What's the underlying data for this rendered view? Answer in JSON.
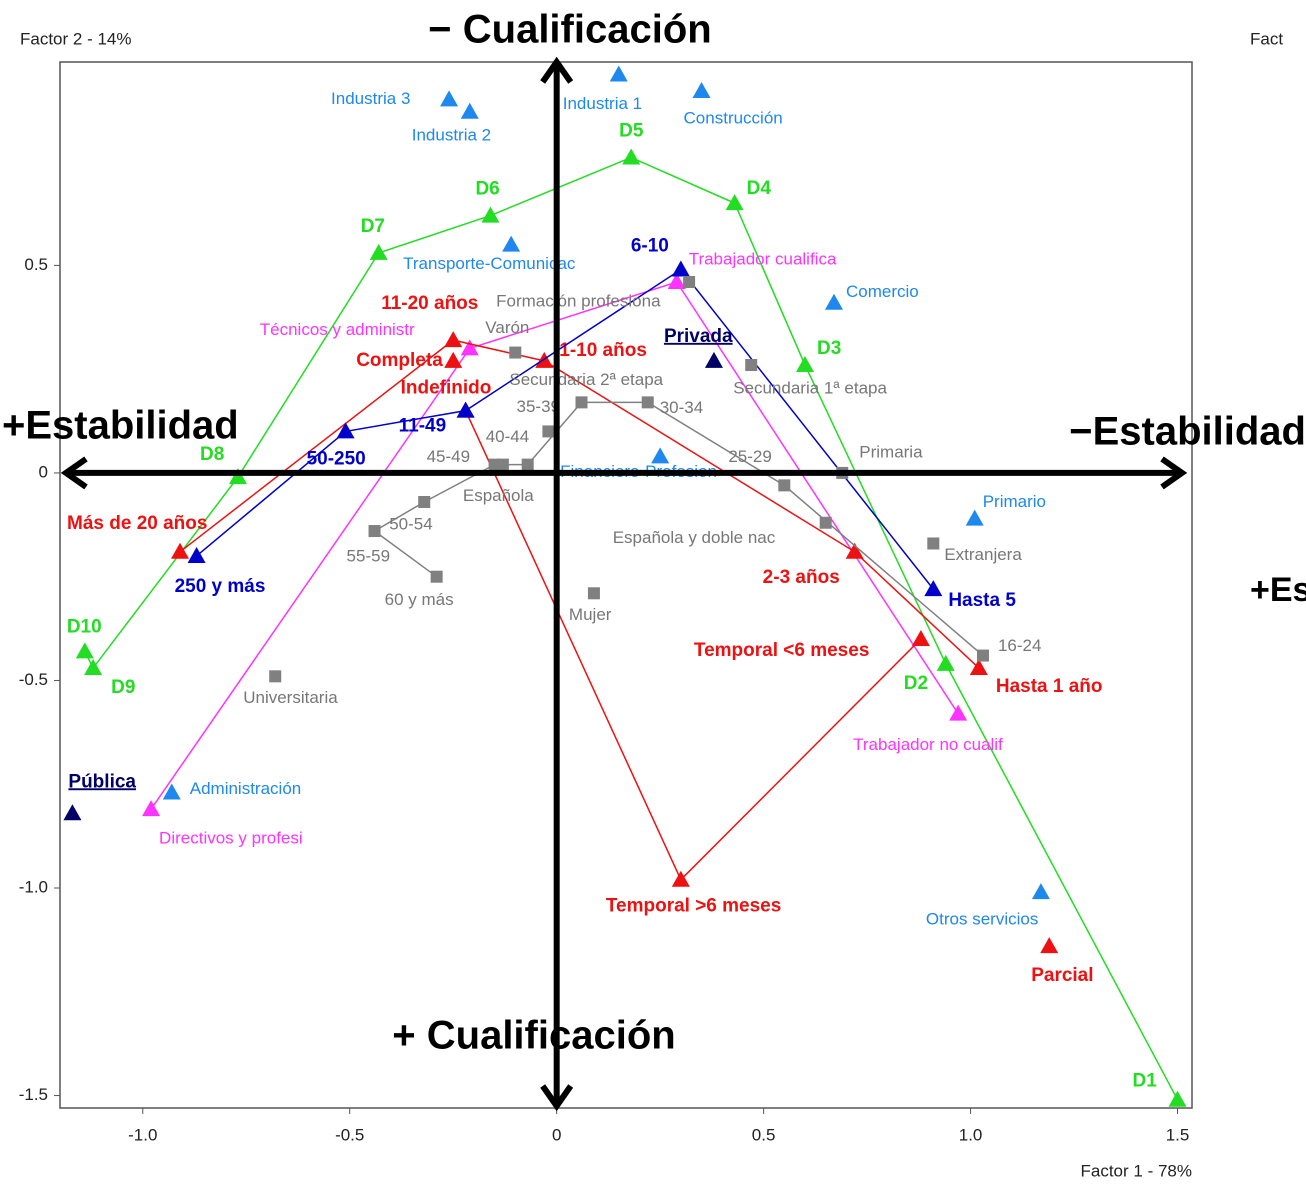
{
  "chart_data": {
    "type": "scatter",
    "xlabel": "Factor 1 - 78%",
    "ylabel": "Factor 2 - 14%",
    "annotations": [
      "− Cualificación",
      "+ Cualificación",
      "+Estabilidad",
      "−Estabilidad",
      "Fact",
      "+Es"
    ],
    "xlim": [
      -1.2,
      1.535
    ],
    "ylim": [
      -1.53,
      0.99
    ],
    "xticks": [
      {
        "value": -1,
        "label": "-1.0"
      },
      -0.5,
      0,
      0.5,
      {
        "value": 1,
        "label": "1.0"
      },
      1.5
    ],
    "yticks": [
      0.5,
      0,
      -0.5,
      {
        "value": -1,
        "label": "-1.0"
      },
      -1.5
    ],
    "series": [
      {
        "color": "#22dd22",
        "marker": "triangle",
        "bold": true,
        "line": true,
        "labels": [
          "D1",
          "D2",
          "D3",
          "D4",
          "D5",
          "D6",
          "D7",
          "D8",
          "D9",
          "D10"
        ],
        "x": [
          1.5,
          0.94,
          0.6,
          0.43,
          0.18,
          -0.16,
          -0.43,
          -0.77,
          -1.12,
          -1.14
        ],
        "values": [
          -1.51,
          -0.46,
          0.26,
          0.65,
          0.76,
          0.62,
          0.53,
          -0.01,
          -0.47,
          -0.43
        ]
      },
      {
        "color": "#1e88ee",
        "marker": "triangle",
        "bold": false,
        "line": false,
        "labels": [
          "Industria 3",
          "Industria 2",
          "Industria 1",
          "Construcción",
          "Transporte-Comunicac",
          "Comercio",
          "Financiero-Profesion",
          "Primario",
          "Otros servicios",
          "Administración"
        ],
        "x": [
          -0.26,
          -0.21,
          0.15,
          0.35,
          -0.11,
          0.67,
          0.25,
          1.01,
          1.17,
          -0.93
        ],
        "values": [
          0.9,
          0.87,
          0.96,
          0.92,
          0.55,
          0.41,
          0.04,
          -0.11,
          -1.01,
          -0.77
        ]
      },
      {
        "color": "#ff33ff",
        "marker": "triangle",
        "bold": false,
        "line": true,
        "labels": [
          "Directivos y profesi",
          "Técnicos y administr",
          "Trabajador cualifica",
          "Trabajador no cualif"
        ],
        "x": [
          -0.98,
          -0.21,
          0.29,
          0.97
        ],
        "values": [
          -0.81,
          0.3,
          0.46,
          -0.58
        ]
      },
      {
        "color": "#ee1111",
        "marker": "triangle",
        "bold": true,
        "line": true,
        "labels": [
          "Más de 20 años",
          "11-20 años",
          "1-10 años",
          "2-3 años",
          "Hasta 1 año"
        ],
        "x": [
          -0.91,
          -0.25,
          -0.03,
          0.72,
          1.02
        ],
        "values": [
          -0.19,
          0.32,
          0.27,
          -0.19,
          -0.47
        ]
      },
      {
        "color": "#ee1111",
        "marker": "triangle",
        "bold": true,
        "line": true,
        "labels": [
          "Indefinido",
          "Temporal >6 meses",
          "Temporal <6 meses"
        ],
        "x": [
          -0.22,
          0.3,
          0.88
        ],
        "values": [
          0.15,
          -0.98,
          -0.4
        ]
      },
      {
        "color": "#ee1111",
        "marker": "triangle",
        "bold": true,
        "line": false,
        "labels": [
          "Completa",
          "Parcial"
        ],
        "x": [
          -0.25,
          1.19
        ],
        "values": [
          0.27,
          -1.14
        ]
      },
      {
        "color": "#0000cc",
        "marker": "triangle",
        "bold": true,
        "line": true,
        "labels": [
          "250 y más",
          "50-250",
          "11-49",
          "6-10",
          "Hasta 5"
        ],
        "x": [
          -0.87,
          -0.51,
          -0.22,
          0.3,
          0.91
        ],
        "values": [
          -0.2,
          0.1,
          0.15,
          0.49,
          -0.28
        ]
      },
      {
        "color": "#000066",
        "marker": "triangle",
        "bold": true,
        "underline": true,
        "line": false,
        "labels": [
          "Pública",
          "Privada"
        ],
        "x": [
          -1.17,
          0.38
        ],
        "values": [
          -0.82,
          0.27
        ]
      },
      {
        "color": "#808080",
        "marker": "square",
        "bold": false,
        "line": true,
        "labels": [
          "16-24",
          "25-29",
          "30-34",
          "35-39",
          "40-44",
          "45-49",
          "50-54",
          "55-59",
          "60 y más"
        ],
        "x": [
          1.03,
          0.55,
          0.22,
          0.06,
          -0.07,
          -0.15,
          -0.32,
          -0.44,
          -0.29
        ],
        "values": [
          -0.44,
          -0.03,
          0.17,
          0.17,
          0.02,
          0.02,
          -0.07,
          -0.14,
          -0.25
        ]
      },
      {
        "color": "#808080",
        "marker": "square",
        "bold": false,
        "line": false,
        "labels": [
          "Varón",
          "Mujer",
          "Formación profesiona",
          "Secundaria 2ª etapa",
          "Secundaria 1ª etapa",
          "Primaria",
          "Universitaria",
          "Española",
          "Española y doble nac",
          "Extranjera"
        ],
        "x": [
          -0.1,
          0.09,
          0.32,
          -0.02,
          0.47,
          0.69,
          -0.68,
          -0.13,
          0.65,
          0.91
        ],
        "values": [
          0.29,
          -0.29,
          0.46,
          0.1,
          0.26,
          0.0,
          -0.49,
          0.02,
          -0.12,
          -0.17
        ]
      }
    ]
  }
}
